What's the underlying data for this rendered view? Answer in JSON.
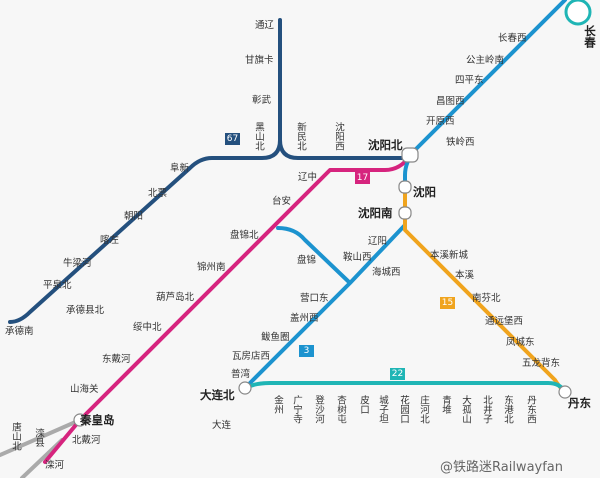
{
  "line_labels": [
    "67",
    "17",
    "3",
    "15",
    "22"
  ],
  "stations": [
    "通辽",
    "甘旗卡",
    "彰武",
    "黑山北",
    "新民北",
    "沈阳西",
    "阜新",
    "北票",
    "朝阳",
    "喀左",
    "牛梁河",
    "平泉北",
    "承德县北",
    "承德南",
    "辽中",
    "台安",
    "盘锦北",
    "锦州南",
    "葫芦岛北",
    "绥中北",
    "东戴河",
    "山海关",
    "北戴河",
    "滦河",
    "唐山北",
    "滦县",
    "长春西",
    "公主岭南",
    "四平东",
    "昌图西",
    "开原西",
    "铁岭西",
    "盘锦",
    "辽阳",
    "鞍山西",
    "海城西",
    "营口东",
    "盖州西",
    "鲅鱼圈",
    "瓦房店西",
    "普湾",
    "大连",
    "本溪新城",
    "本溪",
    "南芬北",
    "通远堡西",
    "凤城东",
    "五龙背东",
    "金州",
    "广宁寺",
    "登沙河",
    "杏树屯",
    "皮口",
    "城子坦",
    "花园口",
    "庄河北",
    "青堆",
    "大孤山",
    "北井子",
    "东港北",
    "丹东西"
  ],
  "hubs": [
    "沈阳北",
    "沈阳",
    "沈阳南",
    "大连北",
    "丹东",
    "秦皇岛",
    "长春"
  ],
  "watermark": "@铁路迷Railwayfan"
}
